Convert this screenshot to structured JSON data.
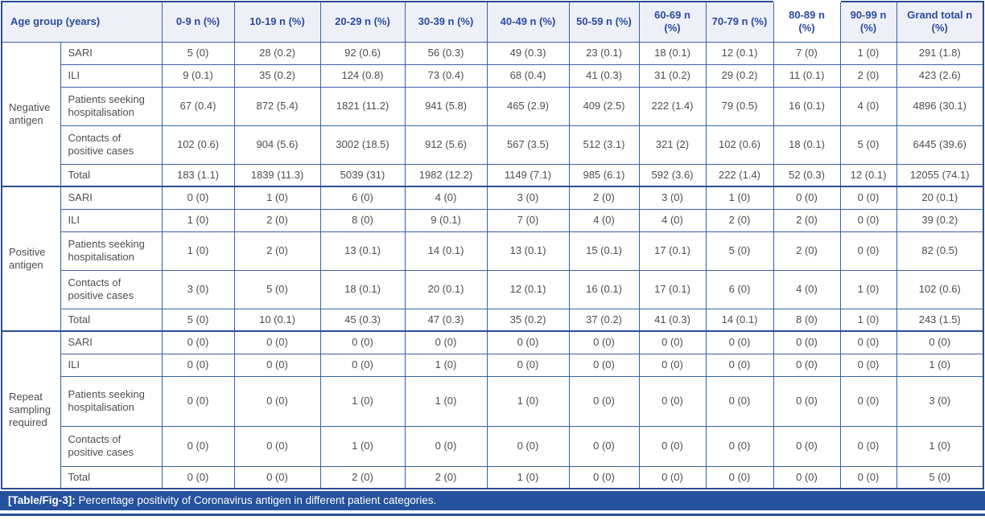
{
  "colors": {
    "border_blue": "#3b5fa8",
    "outer_blue": "#2a4d92",
    "header_bg": "#eef0f8",
    "header_text": "#2b4a9e",
    "body_text": "#4e4e4e",
    "caption_bg": "#26519c",
    "caption_text": "#ffffff"
  },
  "table": {
    "corner_header": "Age group (years)",
    "age_columns": [
      "0-9 n (%)",
      "10-19 n (%)",
      "20-29 n (%)",
      "30-39 n (%)",
      "40-49 n (%)",
      "50-59 n (%)",
      "60-69 n (%)",
      "70-79 n (%)",
      "80-89 n (%)",
      "90-99 n (%)",
      "Grand total n (%)"
    ],
    "groups": [
      {
        "label": "Negative antigen",
        "rows": [
          {
            "category": "SARI",
            "values": [
              "5 (0)",
              "28 (0.2)",
              "92 (0.6)",
              "56 (0.3)",
              "49 (0.3)",
              "23 (0.1)",
              "18 (0.1)",
              "12 (0.1)",
              "7 (0)",
              "1 (0)",
              "291 (1.8)"
            ]
          },
          {
            "category": "ILI",
            "values": [
              "9 (0.1)",
              "35 (0.2)",
              "124 (0.8)",
              "73 (0.4)",
              "68 (0.4)",
              "41 (0.3)",
              "31 (0.2)",
              "29 (0.2)",
              "11 (0.1)",
              "2 (0)",
              "423 (2.6)"
            ]
          },
          {
            "category": "Patients seeking hospitalisation",
            "values": [
              "67 (0.4)",
              "872 (5.4)",
              "1821 (11.2)",
              "941 (5.8)",
              "465 (2.9)",
              "409 (2.5)",
              "222 (1.4)",
              "79 (0.5)",
              "16 (0.1)",
              "4 (0)",
              "4896 (30.1)"
            ]
          },
          {
            "category": "Contacts of positive cases",
            "values": [
              "102 (0.6)",
              "904 (5.6)",
              "3002 (18.5)",
              "912 (5.6)",
              "567 (3.5)",
              "512 (3.1)",
              "321 (2)",
              "102 (0.6)",
              "18 (0.1)",
              "5 (0)",
              "6445 (39.6)"
            ]
          },
          {
            "category": "Total",
            "values": [
              "183 (1.1)",
              "1839 (11.3)",
              "5039 (31)",
              "1982 (12.2)",
              "1149 (7.1)",
              "985 (6.1)",
              "592 (3.6)",
              "222 (1.4)",
              "52 (0.3)",
              "12 (0.1)",
              "12055 (74.1)"
            ]
          }
        ]
      },
      {
        "label": "Positive antigen",
        "rows": [
          {
            "category": "SARI",
            "values": [
              "0 (0)",
              "1 (0)",
              "6 (0)",
              "4 (0)",
              "3 (0)",
              "2 (0)",
              "3 (0)",
              "1 (0)",
              "0 (0)",
              "0 (0)",
              "20 (0.1)"
            ]
          },
          {
            "category": "ILI",
            "values": [
              "1 (0)",
              "2 (0)",
              "8 (0)",
              "9 (0.1)",
              "7 (0)",
              "4 (0)",
              "4 (0)",
              "2 (0)",
              "2 (0)",
              "0 (0)",
              "39 (0.2)"
            ]
          },
          {
            "category": "Patients seeking hospitalisation",
            "values": [
              "1 (0)",
              "2 (0)",
              "13 (0.1)",
              "14 (0.1)",
              "13 (0.1)",
              "15 (0.1)",
              "17 (0.1)",
              "5 (0)",
              "2 (0)",
              "0 (0)",
              "82 (0.5)"
            ]
          },
          {
            "category": "Contacts of positive cases",
            "values": [
              "3 (0)",
              "5 (0)",
              "18 (0.1)",
              "20 (0.1)",
              "12 (0.1)",
              "16 (0.1)",
              "17 (0.1)",
              "6 (0)",
              "4 (0)",
              "1 (0)",
              "102 (0.6)"
            ]
          },
          {
            "category": "Total",
            "values": [
              "5 (0)",
              "10 (0.1)",
              "45 (0.3)",
              "47 (0.3)",
              "35 (0.2)",
              "37 (0.2)",
              "41 (0.3)",
              "14 (0.1)",
              "8 (0)",
              "1 (0)",
              "243 (1.5)"
            ]
          }
        ]
      },
      {
        "label": "Repeat sampling required",
        "rows": [
          {
            "category": "SARI",
            "values": [
              "0 (0)",
              "0 (0)",
              "0 (0)",
              "0 (0)",
              "0 (0)",
              "0 (0)",
              "0 (0)",
              "0 (0)",
              "0 (0)",
              "0 (0)",
              "0 (0)"
            ]
          },
          {
            "category": "ILI",
            "values": [
              "0 (0)",
              "0 (0)",
              "0 (0)",
              "1 (0)",
              "0 (0)",
              "0 (0)",
              "0 (0)",
              "0 (0)",
              "0 (0)",
              "0 (0)",
              "1 (0)"
            ]
          },
          {
            "category": "Patients seeking hospitalisation",
            "values": [
              "0 (0)",
              "0 (0)",
              "1 (0)",
              "1 (0)",
              "1 (0)",
              "0 (0)",
              "0 (0)",
              "0 (0)",
              "0 (0)",
              "0 (0)",
              "3 (0)"
            ]
          },
          {
            "category": "Contacts of positive cases",
            "values": [
              "0 (0)",
              "0 (0)",
              "1 (0)",
              "0 (0)",
              "0 (0)",
              "0 (0)",
              "0 (0)",
              "0 (0)",
              "0 (0)",
              "0 (0)",
              "1 (0)"
            ]
          },
          {
            "category": "Total",
            "values": [
              "0 (0)",
              "0 (0)",
              "2 (0)",
              "2 (0)",
              "1 (0)",
              "0 (0)",
              "0 (0)",
              "0 (0)",
              "0 (0)",
              "0 (0)",
              "5 (0)"
            ]
          }
        ]
      }
    ]
  },
  "caption": {
    "label": "[Table/Fig-3]:",
    "text": "Percentage positivity of Coronavirus antigen in different patient categories."
  }
}
